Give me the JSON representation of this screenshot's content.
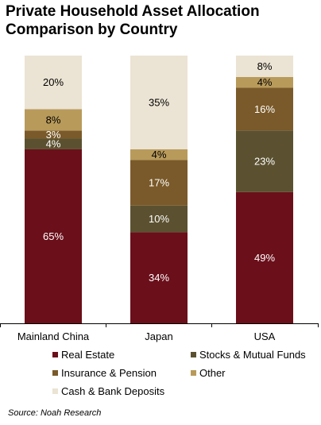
{
  "title_lines": [
    "Private Household Asset Allocation",
    "Comparison by Country"
  ],
  "source": "Source: Noah Research",
  "chart_data": {
    "type": "bar",
    "stacked": true,
    "percent_stacked": true,
    "categories": [
      "Mainland China",
      "Japan",
      "USA"
    ],
    "series": [
      {
        "name": "Real Estate",
        "color": "#6b0f1a",
        "label_color": "#ffffff",
        "values": [
          65,
          34,
          49
        ],
        "labels": [
          "65%",
          "34%",
          "49%"
        ]
      },
      {
        "name": "Stocks & Mutual Funds",
        "color": "#5b5130",
        "label_color": "#ffffff",
        "values": [
          4,
          10,
          23
        ],
        "labels": [
          "4%",
          "10%",
          "23%"
        ]
      },
      {
        "name": "Insurance & Pension",
        "color": "#7a5a2a",
        "label_color": "#ffffff",
        "values": [
          3,
          17,
          16
        ],
        "labels": [
          "3%",
          "17%",
          "16%"
        ]
      },
      {
        "name": "Other",
        "color": "#b89a5a",
        "label_color": "#000000",
        "values": [
          8,
          4,
          4
        ],
        "labels": [
          "8%",
          "4%",
          "4%"
        ]
      },
      {
        "name": "Cash & Bank Deposits",
        "color": "#ebe3d3",
        "label_color": "#000000",
        "values": [
          20,
          35,
          8
        ],
        "labels": [
          "20%",
          "35%",
          "8%"
        ]
      }
    ],
    "ylim": [
      0,
      100
    ],
    "legend_position": "bottom",
    "grid": false
  }
}
